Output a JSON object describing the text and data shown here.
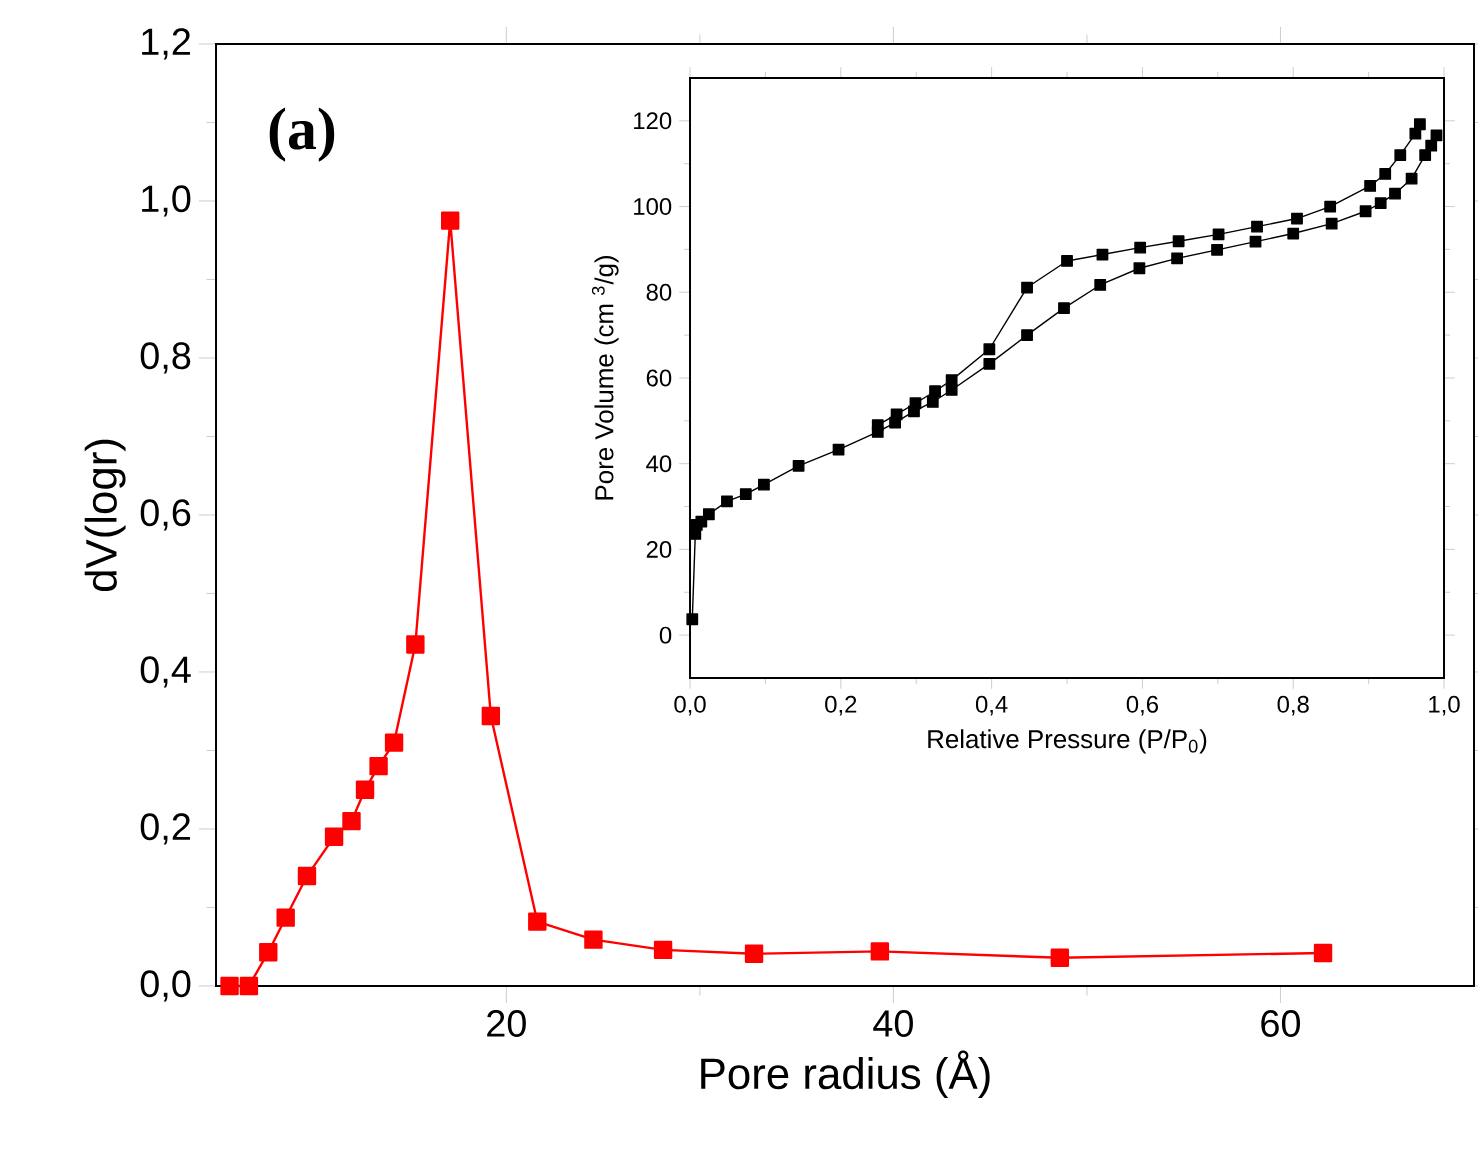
{
  "chart_data": [
    {
      "type": "line",
      "xlabel": "Pore radius (Å)",
      "ylabel": "dV(logr)",
      "marker": "square",
      "xlim": [
        5,
        70
      ],
      "ylim": [
        0,
        1.2
      ],
      "xticks": [
        20,
        40,
        60
      ],
      "yticks": [
        {
          "value": 0,
          "label": "0,0"
        },
        {
          "value": 0.2,
          "label": "0,2"
        },
        {
          "value": 0.4,
          "label": "0,4"
        },
        {
          "value": 0.6,
          "label": "0,6"
        },
        {
          "value": 0.8,
          "label": "0,8"
        },
        {
          "value": 1.0,
          "label": "1,0"
        },
        {
          "value": 1.2,
          "label": "1,2"
        }
      ],
      "x": [
        5.7,
        6.7,
        7.7,
        8.6,
        9.7,
        11.1,
        12.0,
        12.7,
        13.4,
        14.2,
        15.3,
        17.1,
        19.2,
        21.6,
        24.5,
        28.1,
        32.8,
        39.3,
        48.6,
        62.2
      ],
      "series": [
        {
          "color": "#ff0000",
          "values": [
            0,
            0,
            0.043,
            0.087,
            0.14,
            0.19,
            0.21,
            0.25,
            0.28,
            0.31,
            0.435,
            0.975,
            0.344,
            0.082,
            0.059,
            0.046,
            0.041,
            0.044,
            0.036,
            0.042
          ]
        }
      ],
      "annotations": [
        "(a)"
      ]
    },
    {
      "type": "line",
      "xlabel": "Relative Pressure (P/P$_{0}$)",
      "ylabel": "Pore Volume (cm $^{3}$/g)",
      "marker": "square",
      "xlim": [
        0,
        1
      ],
      "ylim": [
        -10,
        130
      ],
      "xticks": [
        {
          "value": 0,
          "label": "0,0"
        },
        {
          "value": 0.2,
          "label": "0,2"
        },
        {
          "value": 0.4,
          "label": "0,4"
        },
        {
          "value": 0.6,
          "label": "0,6"
        },
        {
          "value": 0.8,
          "label": "0,8"
        },
        {
          "value": 1.0,
          "label": "1,0"
        }
      ],
      "yticks": [
        0,
        20,
        40,
        60,
        80,
        100,
        120
      ],
      "series": [
        {
          "color": "#000000",
          "x": [
            0.003,
            0.007,
            0.009,
            0.015,
            0.025,
            0.049,
            0.074,
            0.098,
            0.144,
            0.197,
            0.249,
            0.272,
            0.297,
            0.322,
            0.347,
            0.397,
            0.447,
            0.496,
            0.544,
            0.596,
            0.646,
            0.699,
            0.75,
            0.8,
            0.851,
            0.896,
            0.916,
            0.935,
            0.957,
            0.975,
            0.983,
            0.99
          ],
          "values": [
            3.7,
            23.6,
            25.7,
            26.5,
            28.2,
            31.2,
            32.9,
            35.1,
            39.5,
            43.3,
            47.4,
            49.6,
            52.2,
            54.4,
            57.2,
            63.3,
            70.0,
            76.3,
            81.7,
            85.6,
            87.9,
            89.9,
            91.8,
            93.7,
            96.0,
            98.9,
            100.8,
            103.0,
            106.5,
            112.0,
            114.2,
            116.6
          ]
        },
        {
          "color": "#000000",
          "x": [
            0.249,
            0.274,
            0.299,
            0.325,
            0.347,
            0.397,
            0.447,
            0.5,
            0.547,
            0.597,
            0.648,
            0.701,
            0.752,
            0.805,
            0.849,
            0.902,
            0.922,
            0.942,
            0.962,
            0.968
          ],
          "values": [
            49.0,
            51.5,
            54.1,
            56.9,
            59.5,
            66.7,
            81.1,
            87.3,
            88.8,
            90.4,
            91.9,
            93.5,
            95.3,
            97.2,
            100.0,
            104.8,
            107.6,
            112.0,
            117.0,
            119.2
          ]
        }
      ]
    }
  ]
}
